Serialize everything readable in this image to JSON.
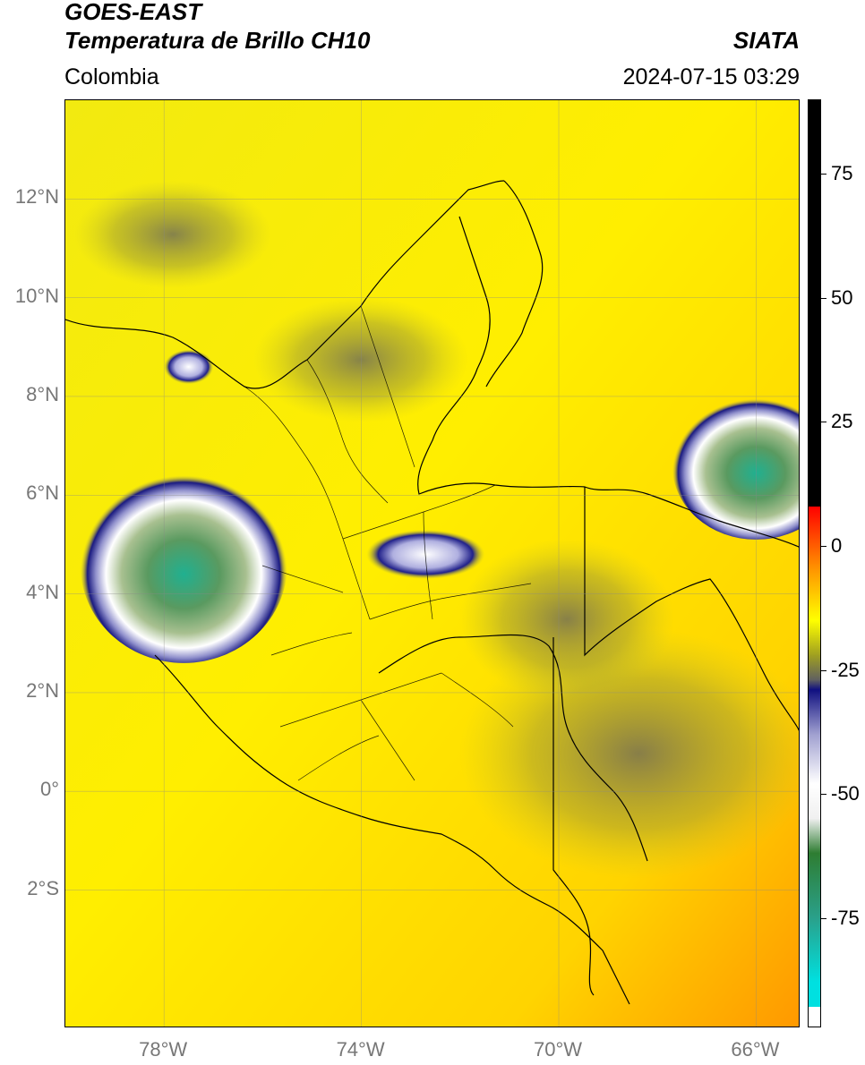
{
  "header": {
    "satellite": "GOES-EAST",
    "product": "Temperatura de Brillo CH10",
    "region": "Colombia",
    "agency": "SIATA",
    "datetime": "2024-07-15 03:29"
  },
  "map": {
    "lat_labels": [
      "12°N",
      "10°N",
      "8°N",
      "6°N",
      "4°N",
      "2°N",
      "0°",
      "2°S"
    ],
    "lon_labels": [
      "78°W",
      "74°W",
      "70°W",
      "66°W"
    ],
    "lat_range": [
      -4.8,
      14.0
    ],
    "lon_range": [
      -80.0,
      -65.1
    ],
    "gridlines": true
  },
  "colorbar": {
    "tick_labels": [
      "75",
      "50",
      "25",
      "0",
      "-25",
      "-50",
      "-75"
    ],
    "tick_values": [
      75,
      50,
      25,
      0,
      -25,
      -50,
      -75
    ],
    "range": [
      -97,
      90
    ],
    "unit": "",
    "colors": {
      "white": "#ffffff",
      "cyan": "#00e0e0",
      "teal": "#2aa08a",
      "green": "#2e7d32",
      "pale_white": "#f0f0f0",
      "lavender": "#a0a0d0",
      "navy": "#101080",
      "gray": "#606060",
      "olive": "#a0a020",
      "yellow": "#ffff00",
      "orange": "#ff9800",
      "red": "#ff0000",
      "black": "#000000"
    }
  },
  "cloud_areas": [
    {
      "name": "pacific-large-cloud",
      "lon": -77.6,
      "lat": 4.6,
      "rx": 2.1,
      "ry": 2.0
    },
    {
      "name": "venezuela-east-cloud",
      "lon": -66.0,
      "lat": 6.6,
      "rx": 1.7,
      "ry": 1.5
    },
    {
      "name": "central-cloud",
      "lon": -72.7,
      "lat": 4.8,
      "rx": 1.2,
      "ry": 0.5
    },
    {
      "name": "gulf-uraba-cloud",
      "lon": -77.5,
      "lat": 8.6,
      "rx": 0.5,
      "ry": 0.35
    }
  ]
}
